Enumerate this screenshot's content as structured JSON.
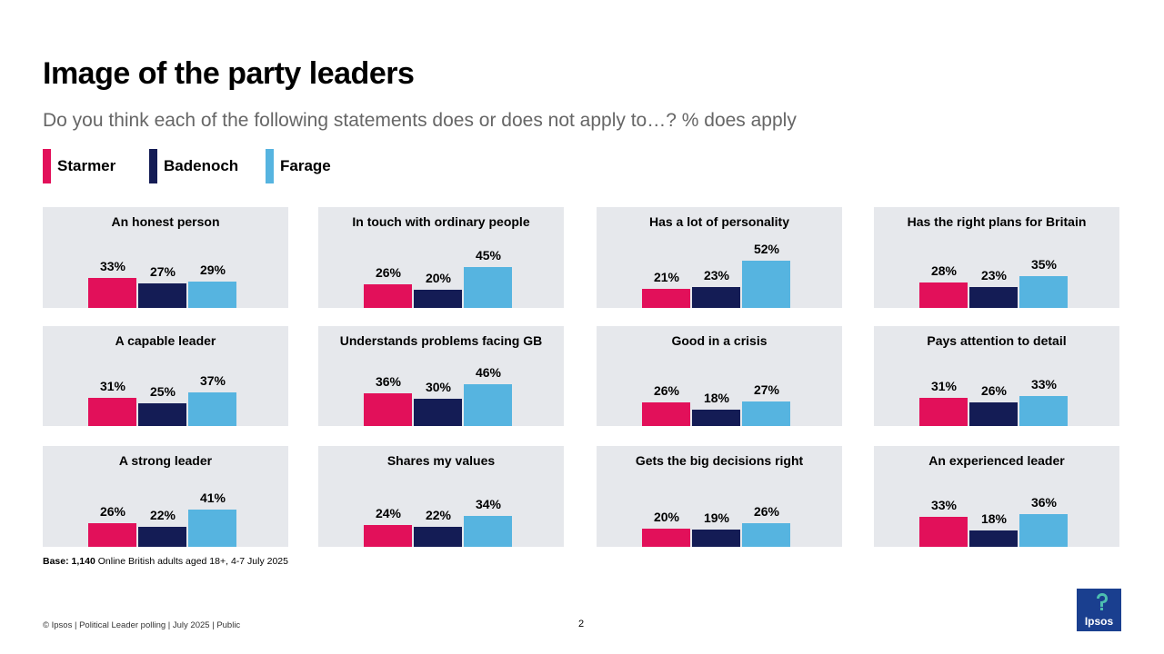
{
  "title": "Image of the party leaders",
  "subtitle": "Do you think each of the following statements does or does not apply to…? % does apply",
  "legend": [
    {
      "name": "Starmer",
      "color": "#e2105a"
    },
    {
      "name": "Badenoch",
      "color": "#141c55"
    },
    {
      "name": "Farage",
      "color": "#56b4e0"
    }
  ],
  "chart_data": {
    "type": "bar",
    "series_names": [
      "Starmer",
      "Badenoch",
      "Farage"
    ],
    "colors": [
      "#e2105a",
      "#141c55",
      "#56b4e0"
    ],
    "unit": "%",
    "panels": [
      {
        "label": "An honest person",
        "values": [
          33,
          27,
          29
        ]
      },
      {
        "label": "In touch with ordinary people",
        "values": [
          26,
          20,
          45
        ]
      },
      {
        "label": "Has a lot of personality",
        "values": [
          21,
          23,
          52
        ]
      },
      {
        "label": "Has the right plans for Britain",
        "values": [
          28,
          23,
          35
        ]
      },
      {
        "label": "A capable leader",
        "values": [
          31,
          25,
          37
        ]
      },
      {
        "label": "Understands problems facing GB",
        "values": [
          36,
          30,
          46
        ]
      },
      {
        "label": "Good in a crisis",
        "values": [
          26,
          18,
          27
        ]
      },
      {
        "label": "Pays attention to detail",
        "values": [
          31,
          26,
          33
        ]
      },
      {
        "label": "A strong leader",
        "values": [
          26,
          22,
          41
        ]
      },
      {
        "label": "Shares my values",
        "values": [
          24,
          22,
          34
        ]
      },
      {
        "label": "Gets the big decisions right",
        "values": [
          20,
          19,
          26
        ]
      },
      {
        "label": "An experienced leader",
        "values": [
          33,
          18,
          36
        ]
      }
    ]
  },
  "base": {
    "label": "Base:",
    "count": "1,140",
    "text": "Online British adults aged 18+,  4-7 July 2025"
  },
  "footer": "© Ipsos | Political Leader polling | July 2025 | Public",
  "page_number": "2",
  "logo_text": "Ipsos"
}
